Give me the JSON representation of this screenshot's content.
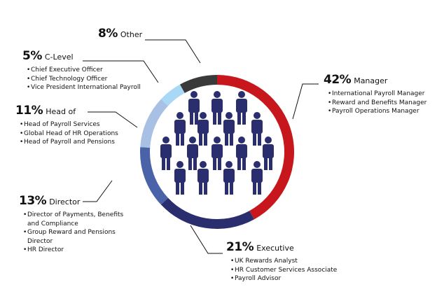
{
  "chart_data": {
    "type": "pie",
    "categories": [
      "Manager",
      "Executive",
      "Director",
      "Head of",
      "C-Level",
      "Other"
    ],
    "values": [
      42,
      21,
      13,
      11,
      5,
      8
    ],
    "value_labels": [
      "42%",
      "21%",
      "13%",
      "11%",
      "5%",
      "8%"
    ],
    "colors": [
      "#c8161d",
      "#2b2e6e",
      "#4a62a8",
      "#a7c0e4",
      "#a8d8f5",
      "#3a3a3a"
    ],
    "items": [
      [
        "International Payroll Manager",
        "Reward and Benefits Manager",
        "Payroll Operations Manager"
      ],
      [
        "UK Rewards Analyst",
        "HR Customer Services Associate",
        "Payroll Advisor"
      ],
      [
        "Director of Payments, Benefits and Compliance",
        "Group Reward and Pensions Director",
        "HR Director"
      ],
      [
        "Head of Payroll Services",
        "Global Head of HR Operations",
        "Head of Payroll and Pensions"
      ],
      [
        "Chief Executive Officer",
        "Chief Technology Officer",
        "Vice President International Payroll"
      ],
      []
    ]
  }
}
